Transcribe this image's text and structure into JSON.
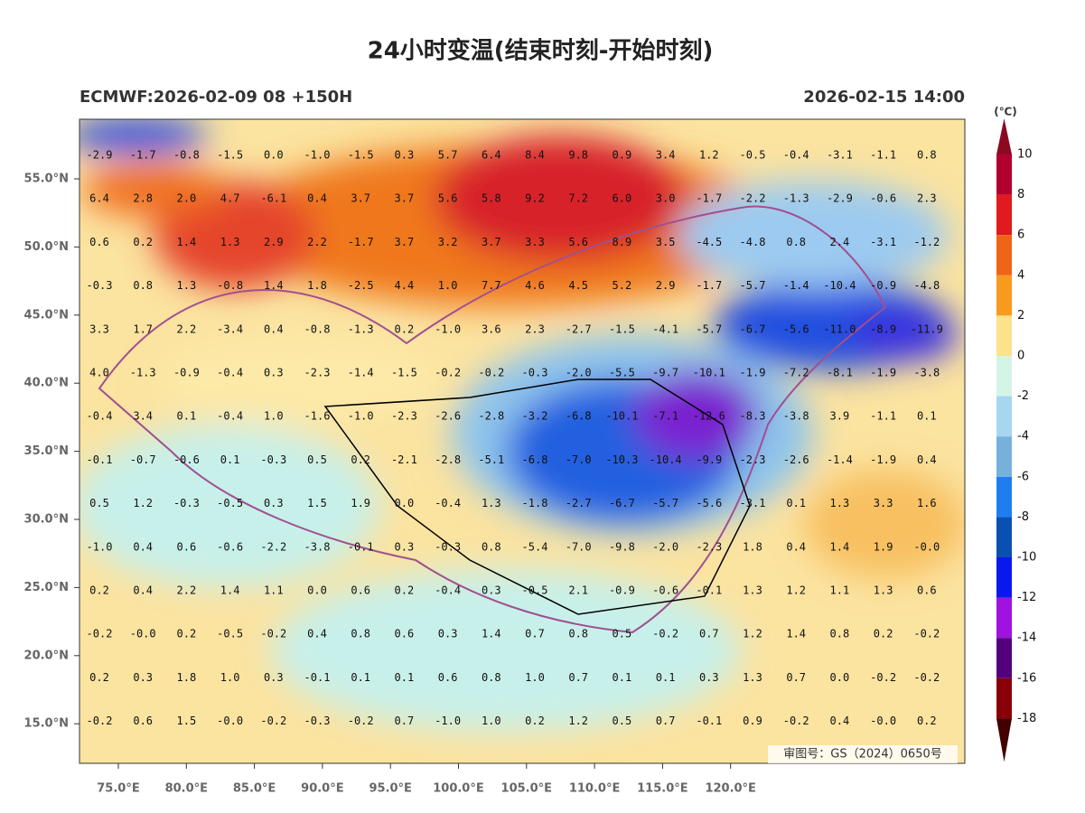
{
  "header": {
    "title": "24小时变温(结束时刻-开始时刻)",
    "left": "ECMWF:2026-02-09 08 +150H",
    "right": "2026-02-15 14:00"
  },
  "lat_labels": [
    "55.0°N",
    "50.0°N",
    "45.0°N",
    "40.0°N",
    "35.0°N",
    "30.0°N",
    "25.0°N",
    "20.0°N",
    "15.0°N"
  ],
  "lon_labels": [
    "75.0°E",
    "80.0°E",
    "85.0°E",
    "90.0°E",
    "95.0°E",
    "100.0°E",
    "105.0°E",
    "110.0°E",
    "115.0°E",
    "120.0°E"
  ],
  "grid": [
    [
      "-2.9",
      "-1.7",
      "-0.8",
      "-1.5",
      "0.0",
      "-1.0",
      "-1.5",
      "0.3",
      "5.7",
      "6.4",
      "8.4",
      "9.8",
      "0.9",
      "3.4",
      "1.2",
      "-0.5",
      "-0.4",
      "-3.1",
      "-1.1",
      "0.8"
    ],
    [
      "6.4",
      "2.8",
      "2.0",
      "4.7",
      "-6.1",
      "0.4",
      "3.7",
      "3.7",
      "5.6",
      "5.8",
      "9.2",
      "7.2",
      "6.0",
      "3.0",
      "-1.7",
      "-2.2",
      "-1.3",
      "-2.9",
      "-0.6",
      "2.3"
    ],
    [
      "0.6",
      "0.2",
      "1.4",
      "1.3",
      "2.9",
      "2.2",
      "-1.7",
      "3.7",
      "3.2",
      "3.7",
      "3.3",
      "5.6",
      "8.9",
      "3.5",
      "-4.5",
      "-4.8",
      "0.8",
      "2.4",
      "-3.1",
      "-1.2"
    ],
    [
      "-0.3",
      "0.8",
      "1.3",
      "-0.8",
      "1.4",
      "1.8",
      "-2.5",
      "4.4",
      "1.0",
      "7.7",
      "4.6",
      "4.5",
      "5.2",
      "2.9",
      "-1.7",
      "-5.7",
      "-1.4",
      "-10.4",
      "-0.9",
      "-4.8"
    ],
    [
      "3.3",
      "1.7",
      "2.2",
      "-3.4",
      "0.4",
      "-0.8",
      "-1.3",
      "0.2",
      "-1.0",
      "3.6",
      "2.3",
      "-2.7",
      "-1.5",
      "-4.1",
      "-5.7",
      "-6.7",
      "-5.6",
      "-11.0",
      "-8.9",
      "-11.9"
    ],
    [
      "4.0",
      "-1.3",
      "-0.9",
      "-0.4",
      "0.3",
      "-2.3",
      "-1.4",
      "-1.5",
      "-0.2",
      "-0.2",
      "-0.3",
      "-2.0",
      "-5.5",
      "-9.7",
      "-10.1",
      "-1.9",
      "-7.2",
      "-8.1",
      "-1.9",
      "-3.8"
    ],
    [
      "-0.4",
      "3.4",
      "0.1",
      "-0.4",
      "1.0",
      "-1.6",
      "-1.0",
      "-2.3",
      "-2.6",
      "-2.8",
      "-3.2",
      "-6.8",
      "-10.1",
      "-7.1",
      "-12.6",
      "-8.3",
      "-3.8",
      "3.9",
      "-1.1",
      "0.1"
    ],
    [
      "-0.1",
      "-0.7",
      "-0.6",
      "0.1",
      "-0.3",
      "0.5",
      "0.2",
      "-2.1",
      "-2.8",
      "-5.1",
      "-6.8",
      "-7.0",
      "-10.3",
      "-10.4",
      "-9.9",
      "-2.3",
      "-2.6",
      "-1.4",
      "-1.9",
      "0.4"
    ],
    [
      "0.5",
      "1.2",
      "-0.3",
      "-0.5",
      "0.3",
      "1.5",
      "1.9",
      "0.0",
      "-0.4",
      "1.3",
      "-1.8",
      "-2.7",
      "-6.7",
      "-5.7",
      "-5.6",
      "-3.1",
      "0.1",
      "1.3",
      "3.3",
      "1.6"
    ],
    [
      "-1.0",
      "0.4",
      "0.6",
      "-0.6",
      "-2.2",
      "-3.8",
      "-0.1",
      "0.3",
      "-0.3",
      "0.8",
      "-5.4",
      "-7.0",
      "-9.8",
      "-2.0",
      "-2.3",
      "1.8",
      "0.4",
      "1.4",
      "1.9",
      "-0.0"
    ],
    [
      "0.2",
      "0.4",
      "2.2",
      "1.4",
      "1.1",
      "0.0",
      "0.6",
      "0.2",
      "-0.4",
      "0.3",
      "-0.5",
      "2.1",
      "-0.9",
      "-0.6",
      "-0.1",
      "1.3",
      "1.2",
      "1.1",
      "1.3",
      "0.6"
    ],
    [
      "-0.2",
      "-0.0",
      "0.2",
      "-0.5",
      "-0.2",
      "0.4",
      "0.8",
      "0.6",
      "0.3",
      "1.4",
      "0.7",
      "0.8",
      "0.5",
      "-0.2",
      "0.7",
      "1.2",
      "1.4",
      "0.8",
      "0.2",
      "-0.2"
    ],
    [
      "0.2",
      "0.3",
      "1.8",
      "1.0",
      "0.3",
      "-0.1",
      "0.1",
      "0.1",
      "0.6",
      "0.8",
      "1.0",
      "0.7",
      "0.1",
      "0.1",
      "0.3",
      "1.3",
      "0.7",
      "0.0",
      "-0.2",
      "-0.2"
    ],
    [
      "-0.2",
      "0.6",
      "1.5",
      "-0.0",
      "-0.2",
      "-0.3",
      "-0.2",
      "0.7",
      "-1.0",
      "1.0",
      "0.2",
      "1.2",
      "0.5",
      "0.7",
      "-0.1",
      "0.9",
      "-0.2",
      "0.4",
      "-0.0",
      "0.2"
    ]
  ],
  "colorbar": {
    "unit": "(℃)",
    "labels": [
      "10",
      "8",
      "6",
      "4",
      "2",
      "0",
      "-2",
      "-4",
      "-6",
      "-8",
      "-10",
      "-12",
      "-14",
      "-16",
      "-18"
    ],
    "colors": [
      "#8b0a22",
      "#b4002e",
      "#e01a1e",
      "#f06418",
      "#f89a1e",
      "#fde28c",
      "#d4f4e6",
      "#a6d6f0",
      "#78b0dc",
      "#1e7ef0",
      "#0a4fb2",
      "#0a18f0",
      "#a012e0",
      "#52007c",
      "#8a0008",
      "#420000"
    ]
  },
  "approval": "审图号：GS（2024）0650号"
}
